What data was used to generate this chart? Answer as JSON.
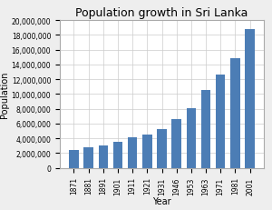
{
  "title": "Population growth in Sri Lanka",
  "xlabel": "Year",
  "ylabel": "Population",
  "years": [
    1871,
    1881,
    1891,
    1901,
    1911,
    1921,
    1931,
    1946,
    1953,
    1963,
    1971,
    1981,
    2001
  ],
  "population": [
    2400000,
    2760000,
    3000000,
    3560000,
    4106350,
    4498605,
    5306871,
    6657339,
    8098635,
    10582064,
    12689897,
    14846750,
    18797257
  ],
  "bar_color": "#4C7DB5",
  "bg_color": "#EEEEEe",
  "plot_bg_color": "#FFFFFF",
  "ylim": [
    0,
    20000000
  ],
  "ytick_step": 2000000,
  "title_fontsize": 9,
  "axis_label_fontsize": 7,
  "tick_fontsize": 5.5
}
